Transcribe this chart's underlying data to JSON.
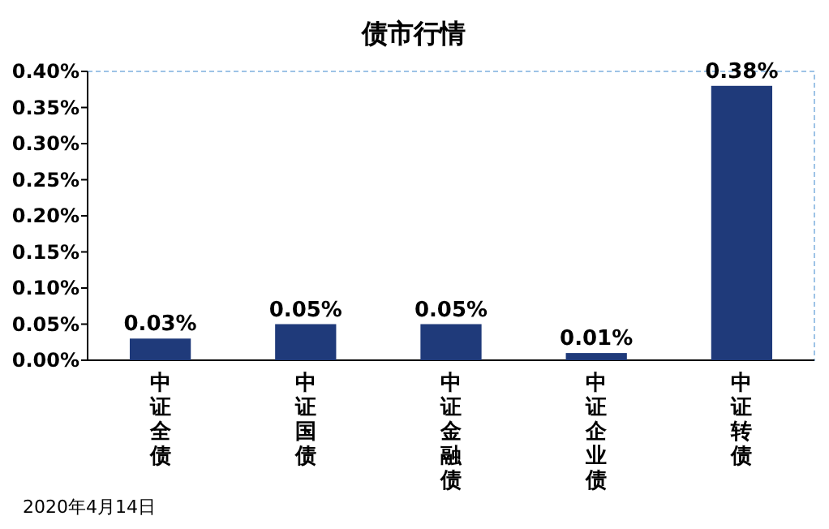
{
  "chart_data": {
    "type": "bar",
    "title": "债市行情",
    "categories": [
      "中证全债",
      "中证国债",
      "中证金融债",
      "中证企业债",
      "中证转债"
    ],
    "values": [
      0.03,
      0.05,
      0.05,
      0.01,
      0.38
    ],
    "value_labels": [
      "0.03%",
      "0.05%",
      "0.05%",
      "0.01%",
      "0.38%"
    ],
    "color": "#1f3a7a",
    "ylim": [
      0,
      0.4
    ],
    "yticks": [
      {
        "value": 0,
        "label": "0.00%"
      },
      {
        "value": 0.05,
        "label": "0.05%"
      },
      {
        "value": 0.1,
        "label": "0.10%"
      },
      {
        "value": 0.15,
        "label": "0.15%"
      },
      {
        "value": 0.2,
        "label": "0.20%"
      },
      {
        "value": 0.25,
        "label": "0.25%"
      },
      {
        "value": 0.3,
        "label": "0.30%"
      },
      {
        "value": 0.35,
        "label": "0.35%"
      },
      {
        "value": 0.4,
        "label": "0.40%"
      }
    ],
    "grid": false,
    "annotations": [
      "2020年4月14日"
    ]
  }
}
